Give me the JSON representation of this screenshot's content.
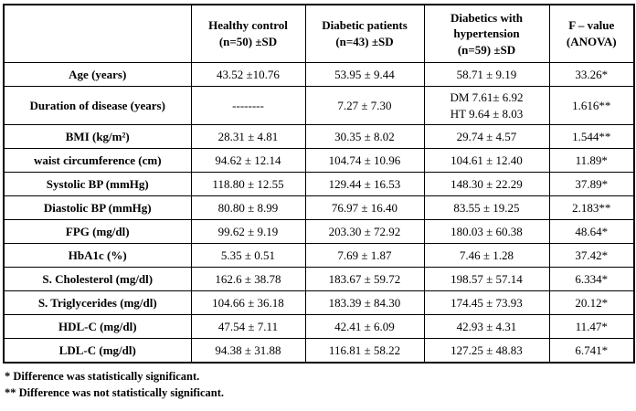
{
  "table": {
    "headers": [
      "",
      "Healthy control\n(n=50) ±SD",
      "Diabetic patients\n(n=43) ±SD",
      "Diabetics with\nhypertension\n(n=59) ±SD",
      "F – value\n(ANOVA)"
    ],
    "rows": [
      {
        "label": "Age (years)",
        "values": [
          "43.52 ±10.76",
          "53.95 ± 9.44",
          "58.71 ± 9.19",
          "33.26*"
        ]
      },
      {
        "label": "Duration of disease (years)",
        "values": [
          "--------",
          "7.27 ± 7.30",
          "DM 7.61± 6.92\nHT 9.64 ± 8.03",
          "1.616**"
        ]
      },
      {
        "label": "BMI (kg/m²)",
        "values": [
          "28.31 ± 4.81",
          "30.35 ± 8.02",
          "29.74 ± 4.57",
          "1.544**"
        ]
      },
      {
        "label": "waist circumference (cm)",
        "values": [
          "94.62 ± 12.14",
          "104.74 ± 10.96",
          "104.61 ± 12.40",
          "11.89*"
        ]
      },
      {
        "label": "Systolic BP (mmHg)",
        "values": [
          "118.80 ± 12.55",
          "129.44 ± 16.53",
          "148.30 ± 22.29",
          "37.89*"
        ]
      },
      {
        "label": "Diastolic BP (mmHg)",
        "values": [
          "80.80  ± 8.99",
          "76.97 ± 16.40",
          "83.55 ± 19.25",
          "2.183**"
        ]
      },
      {
        "label": "FPG (mg/dl)",
        "values": [
          "99.62 ± 9.19",
          "203.30 ± 72.92",
          "180.03 ± 60.38",
          "48.64*"
        ]
      },
      {
        "label": "HbA1c (%)",
        "values": [
          "5.35 ± 0.51",
          "7.69 ± 1.87",
          "7.46 ± 1.28",
          "37.42*"
        ]
      },
      {
        "label": "S. Cholesterol (mg/dl)",
        "values": [
          "162.6 ± 38.78",
          "183.67 ± 59.72",
          "198.57 ± 57.14",
          "6.334*"
        ]
      },
      {
        "label": "S. Triglycerides (mg/dl)",
        "values": [
          "104.66 ± 36.18",
          "183.39 ± 84.30",
          "174.45 ± 73.93",
          "20.12*"
        ]
      },
      {
        "label": "HDL-C (mg/dl)",
        "values": [
          "47.54 ± 7.11",
          "42.41 ± 6.09",
          "42.93 ± 4.31",
          "11.47*"
        ]
      },
      {
        "label": "LDL-C (mg/dl)",
        "values": [
          "94.38 ± 31.88",
          "116.81 ± 58.22",
          "127.25 ± 48.83",
          "6.741*"
        ]
      }
    ]
  },
  "footnotes": [
    "* Difference was statistically significant.",
    "** Difference was not statistically significant."
  ],
  "chart_data": {
    "type": "table",
    "title": "",
    "columns": [
      "Healthy control (n=50) ±SD",
      "Diabetic patients (n=43) ±SD",
      "Diabetics with hypertension (n=59) ±SD",
      "F – value (ANOVA)"
    ],
    "row_labels": [
      "Age (years)",
      "Duration of disease (years)",
      "BMI (kg/m²)",
      "waist circumference (cm)",
      "Systolic BP (mmHg)",
      "Diastolic BP (mmHg)",
      "FPG (mg/dl)",
      "HbA1c (%)",
      "S. Cholesterol (mg/dl)",
      "S. Triglycerides (mg/dl)",
      "HDL-C (mg/dl)",
      "LDL-C (mg/dl)"
    ]
  }
}
